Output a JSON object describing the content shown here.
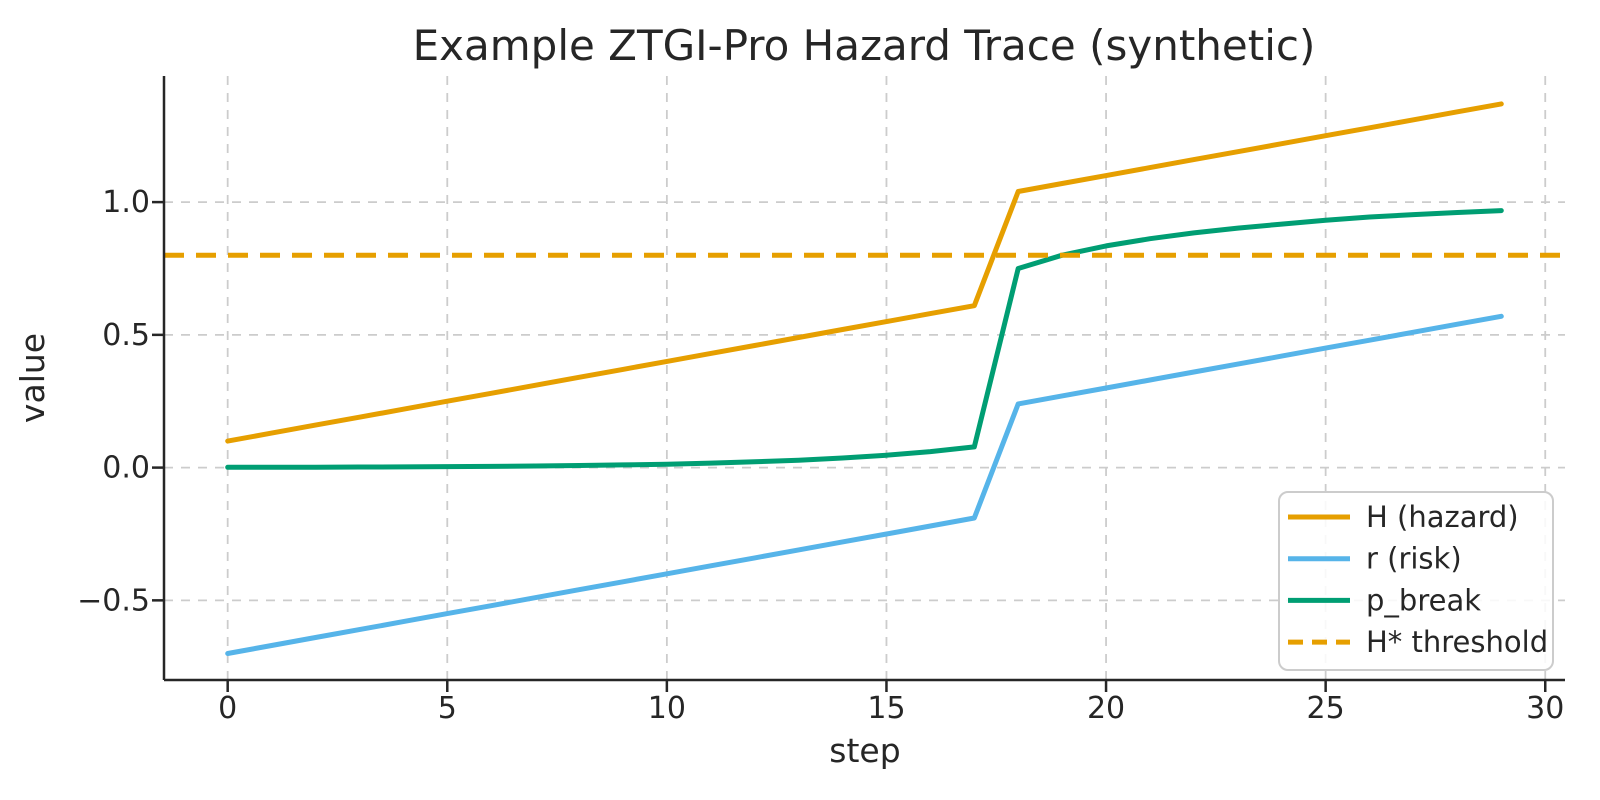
{
  "title": "Example ZTGI-Pro Hazard Trace (synthetic)",
  "chart_data": {
    "type": "line",
    "title": "Example ZTGI-Pro Hazard Trace (synthetic)",
    "xlabel": "step",
    "ylabel": "value",
    "xlim": [
      -1.45,
      30.45
    ],
    "ylim": [
      -0.8,
      1.475
    ],
    "x_ticks": [
      0,
      5,
      10,
      15,
      20,
      25,
      30
    ],
    "y_ticks": [
      -0.5,
      0.0,
      0.5,
      1.0
    ],
    "grid": true,
    "grid_style": "dashed",
    "legend_position": "lower right",
    "x": [
      0,
      1,
      2,
      3,
      4,
      5,
      6,
      7,
      8,
      9,
      10,
      11,
      12,
      13,
      14,
      15,
      16,
      17,
      18,
      19,
      20,
      21,
      22,
      23,
      24,
      25,
      26,
      27,
      28,
      29
    ],
    "series": [
      {
        "name": "H (hazard)",
        "color": "#E69F00",
        "style": "solid",
        "values": [
          0.1,
          0.13,
          0.16,
          0.19,
          0.22,
          0.25,
          0.28,
          0.31,
          0.34,
          0.37,
          0.4,
          0.43,
          0.46,
          0.49,
          0.52,
          0.55,
          0.58,
          0.61,
          1.04,
          1.07,
          1.1,
          1.13,
          1.16,
          1.19,
          1.22,
          1.25,
          1.28,
          1.31,
          1.34,
          1.37
        ]
      },
      {
        "name": "r (risk)",
        "color": "#56B4E9",
        "style": "solid",
        "values": [
          -0.7,
          -0.67,
          -0.64,
          -0.61,
          -0.58,
          -0.55,
          -0.52,
          -0.49,
          -0.46,
          -0.43,
          -0.4,
          -0.37,
          -0.34,
          -0.31,
          -0.28,
          -0.25,
          -0.22,
          -0.19,
          0.24,
          0.27,
          0.3,
          0.33,
          0.36,
          0.39,
          0.42,
          0.45,
          0.48,
          0.51,
          0.54,
          0.57
        ]
      },
      {
        "name": "p_break",
        "color": "#009E73",
        "style": "solid",
        "values": [
          0.001,
          0.0013,
          0.0017,
          0.0022,
          0.0028,
          0.0036,
          0.0047,
          0.006,
          0.0078,
          0.0101,
          0.013,
          0.0168,
          0.0217,
          0.028,
          0.0362,
          0.0467,
          0.0603,
          0.0778,
          0.75,
          0.8,
          0.835,
          0.862,
          0.884,
          0.902,
          0.917,
          0.932,
          0.944,
          0.953,
          0.961,
          0.968
        ]
      }
    ],
    "threshold": {
      "name": "H* threshold",
      "color": "#E69F00",
      "style": "dashed",
      "value": 0.8
    },
    "colors": {
      "grid": "#cccccc",
      "spine": "#262626",
      "text": "#262626",
      "legend_border": "#cccccc",
      "background": "#ffffff"
    }
  }
}
